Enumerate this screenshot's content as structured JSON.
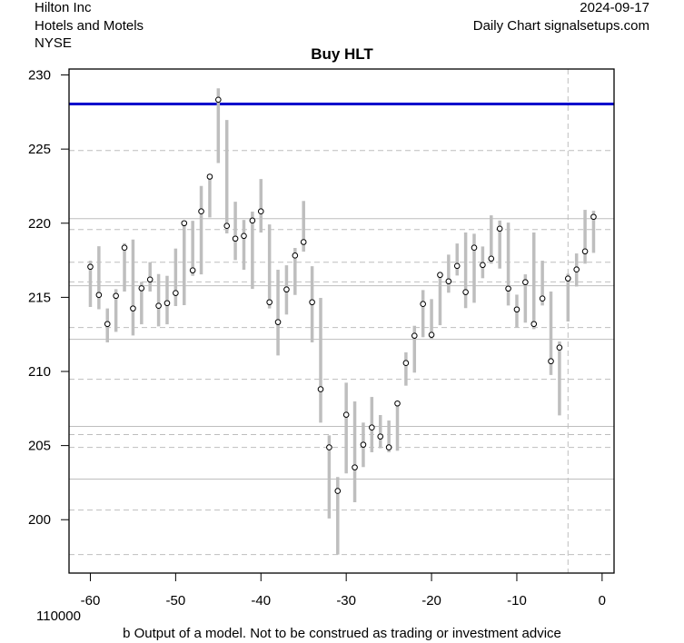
{
  "header": {
    "company": "Hilton Inc",
    "industry": "Hotels and Motels",
    "exchange": "NYSE",
    "date": "2024-09-17",
    "source": "Daily Chart signalsetups.com"
  },
  "footer": {
    "volume_label": "110000",
    "disclaimer": "b Output of a model. Not to be construed as trading or investment advice"
  },
  "colors": {
    "bar": "#bebebe",
    "signal_line": "#0000cc",
    "level_line": "#bebebe",
    "axis": "#000000"
  },
  "chart_data": {
    "type": "line",
    "title": "Buy HLT",
    "xlabel": "",
    "ylabel": "",
    "xlim": [
      -62.5,
      1.4
    ],
    "ylim": [
      196.4,
      230.4
    ],
    "x_ticks": [
      -60,
      -50,
      -40,
      -30,
      -20,
      -10,
      0
    ],
    "y_ticks": [
      200,
      205,
      210,
      215,
      220,
      225,
      230
    ],
    "signal_level": 228.04,
    "vertical_marker_x": -4,
    "solid_levels": [
      220.31,
      215.78,
      212.17,
      206.29,
      202.74
    ],
    "dashed_levels": [
      224.9,
      219.57,
      217.37,
      216.04,
      212.96,
      209.47,
      205.74,
      204.88,
      200.65,
      197.65
    ],
    "series": [
      {
        "name": "daily",
        "x": [
          -60,
          -59,
          -58,
          -57,
          -56,
          -55,
          -54,
          -53,
          -52,
          -51,
          -50,
          -49,
          -48,
          -47,
          -46,
          -45,
          -44,
          -43,
          -42,
          -41,
          -40,
          -39,
          -38,
          -37,
          -36,
          -35,
          -34,
          -33,
          -32,
          -31,
          -30,
          -29,
          -28,
          -27,
          -26,
          -25,
          -24,
          -23,
          -22,
          -21,
          -20,
          -19,
          -18,
          -17,
          -16,
          -15,
          -14,
          -13,
          -12,
          -11,
          -10,
          -9,
          -8,
          -7,
          -6,
          -5,
          -4,
          -3,
          -2,
          -1
        ],
        "close": [
          217.06,
          215.16,
          213.2,
          215.1,
          218.35,
          214.25,
          215.61,
          216.2,
          214.43,
          214.61,
          215.29,
          220.0,
          216.82,
          220.8,
          223.14,
          228.33,
          219.82,
          218.96,
          219.14,
          220.18,
          220.8,
          214.67,
          213.33,
          215.53,
          217.82,
          218.73,
          214.67,
          208.8,
          204.88,
          201.94,
          207.08,
          203.53,
          205.06,
          206.22,
          205.61,
          204.88,
          207.84,
          210.57,
          212.41,
          214.55,
          212.47,
          216.51,
          216.08,
          217.12,
          215.35,
          218.35,
          217.18,
          217.61,
          219.63,
          215.59,
          214.18,
          216.02,
          213.2,
          214.92,
          210.69,
          211.61,
          216.27,
          216.88,
          218.1,
          220.43
        ],
        "high": [
          217.47,
          218.45,
          214.25,
          215.55,
          218.65,
          218.9,
          216.04,
          217.37,
          216.57,
          216.45,
          218.29,
          220.12,
          220.16,
          222.51,
          223.29,
          229.1,
          226.96,
          221.45,
          220.22,
          220.78,
          222.98,
          219.92,
          216.86,
          217.16,
          218.33,
          221.5,
          217.1,
          214.96,
          205.69,
          202.88,
          209.24,
          207.98,
          206.55,
          208.28,
          207.06,
          206.69,
          207.94,
          211.29,
          213.08,
          215.49,
          214.88,
          216.65,
          217.88,
          218.63,
          219.37,
          219.29,
          218.43,
          220.53,
          220.18,
          220.04,
          215.18,
          216.55,
          219.37,
          217.47,
          215.39,
          212.02,
          216.59,
          217.96,
          220.9,
          220.84
        ],
        "low": [
          214.35,
          214.2,
          211.96,
          212.67,
          215.39,
          212.43,
          213.18,
          215.39,
          213.04,
          213.18,
          214.41,
          214.47,
          216.45,
          216.55,
          220.39,
          224.06,
          219.31,
          217.51,
          216.86,
          215.57,
          219.37,
          214.25,
          211.08,
          213.84,
          215.16,
          218.08,
          211.96,
          206.55,
          200.08,
          197.65,
          203.12,
          201.18,
          203.55,
          204.55,
          204.82,
          204.55,
          204.65,
          209.04,
          209.92,
          212.31,
          212.2,
          213.12,
          215.31,
          216.47,
          214.27,
          214.63,
          216.29,
          217.27,
          216.94,
          214.45,
          212.98,
          213.29,
          212.86,
          214.45,
          209.76,
          207.04,
          213.37,
          215.73,
          217.27,
          218.0
        ]
      }
    ]
  }
}
